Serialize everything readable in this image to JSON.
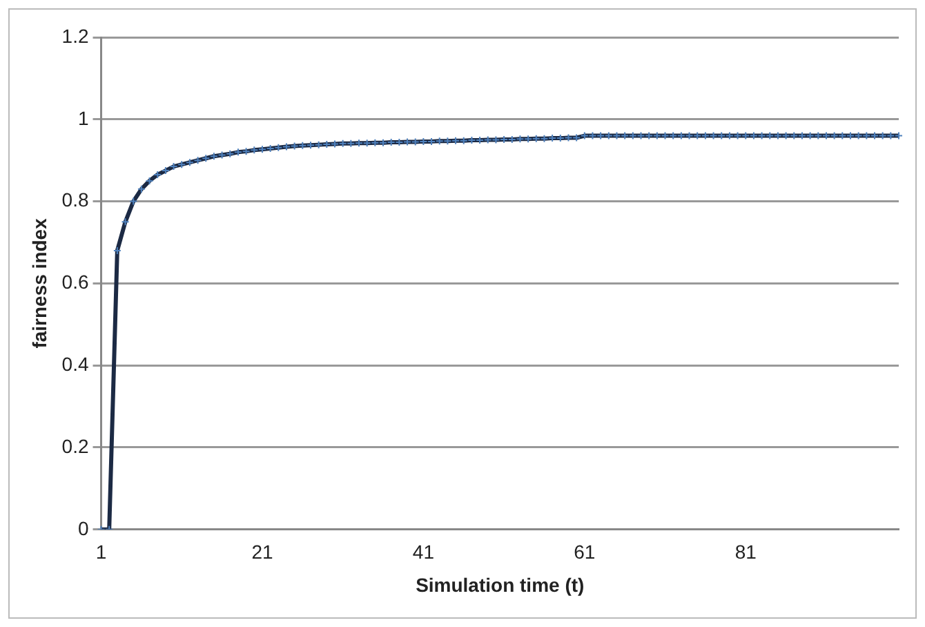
{
  "chart_data": {
    "type": "line",
    "xlabel": "Simulation time (t)",
    "ylabel": "fairness index",
    "categories": [
      "1",
      null,
      null,
      null,
      null,
      null,
      null,
      null,
      null,
      null,
      null,
      null,
      null,
      null,
      null,
      null,
      null,
      null,
      null,
      null,
      "21",
      null,
      null,
      null,
      null,
      null,
      null,
      null,
      null,
      null,
      null,
      null,
      null,
      null,
      null,
      null,
      null,
      null,
      null,
      null,
      "41",
      null,
      null,
      null,
      null,
      null,
      null,
      null,
      null,
      null,
      null,
      null,
      null,
      null,
      null,
      null,
      null,
      null,
      null,
      null,
      "61",
      null,
      null,
      null,
      null,
      null,
      null,
      null,
      null,
      null,
      null,
      null,
      null,
      null,
      null,
      null,
      null,
      null,
      null,
      null,
      "81",
      null,
      null,
      null,
      null,
      null,
      null,
      null,
      null,
      null,
      null,
      null,
      null,
      null,
      null,
      null,
      null,
      null,
      null,
      null
    ],
    "series": [
      {
        "color": "#1c2a44",
        "values": [
          0,
          0,
          0.68,
          0.75,
          0.8,
          0.83,
          0.85,
          0.865,
          0.875,
          0.885,
          0.89,
          0.895,
          0.9,
          0.905,
          0.91,
          0.913,
          0.916,
          0.92,
          0.922,
          0.925,
          0.927,
          0.929,
          0.931,
          0.933,
          0.935,
          0.936,
          0.937,
          0.938,
          0.939,
          0.94,
          0.941,
          0.941,
          0.942,
          0.942,
          0.943,
          0.943,
          0.944,
          0.944,
          0.945,
          0.945,
          0.946,
          0.946,
          0.947,
          0.947,
          0.948,
          0.948,
          0.949,
          0.949,
          0.95,
          0.95,
          0.951,
          0.951,
          0.952,
          0.952,
          0.953,
          0.953,
          0.954,
          0.954,
          0.955,
          0.955,
          0.96,
          0.96,
          0.96,
          0.96,
          0.96,
          0.96,
          0.96,
          0.96,
          0.96,
          0.96,
          0.96,
          0.96,
          0.96,
          0.96,
          0.96,
          0.96,
          0.96,
          0.96,
          0.96,
          0.96,
          0.96,
          0.96,
          0.96,
          0.96,
          0.96,
          0.96,
          0.96,
          0.96,
          0.96,
          0.96,
          0.96,
          0.96,
          0.96,
          0.96,
          0.96,
          0.96,
          0.96,
          0.96,
          0.96,
          0.96
        ]
      }
    ],
    "ylim": [
      0,
      1.2
    ],
    "yticks": [
      0,
      0.2,
      0.4,
      0.6,
      0.8,
      1,
      1.2
    ],
    "grid": "y",
    "legend": false,
    "marker": "cross",
    "line_style": "solid"
  }
}
